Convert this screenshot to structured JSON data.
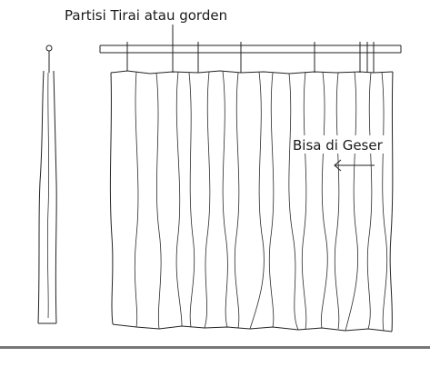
{
  "diagram": {
    "title_label": "Partisi Tirai atau gorden",
    "slide_label": "Bisa di Geser",
    "colors": {
      "line": "#222222",
      "background": "#ffffff",
      "bottom_rule": "#777777"
    }
  }
}
